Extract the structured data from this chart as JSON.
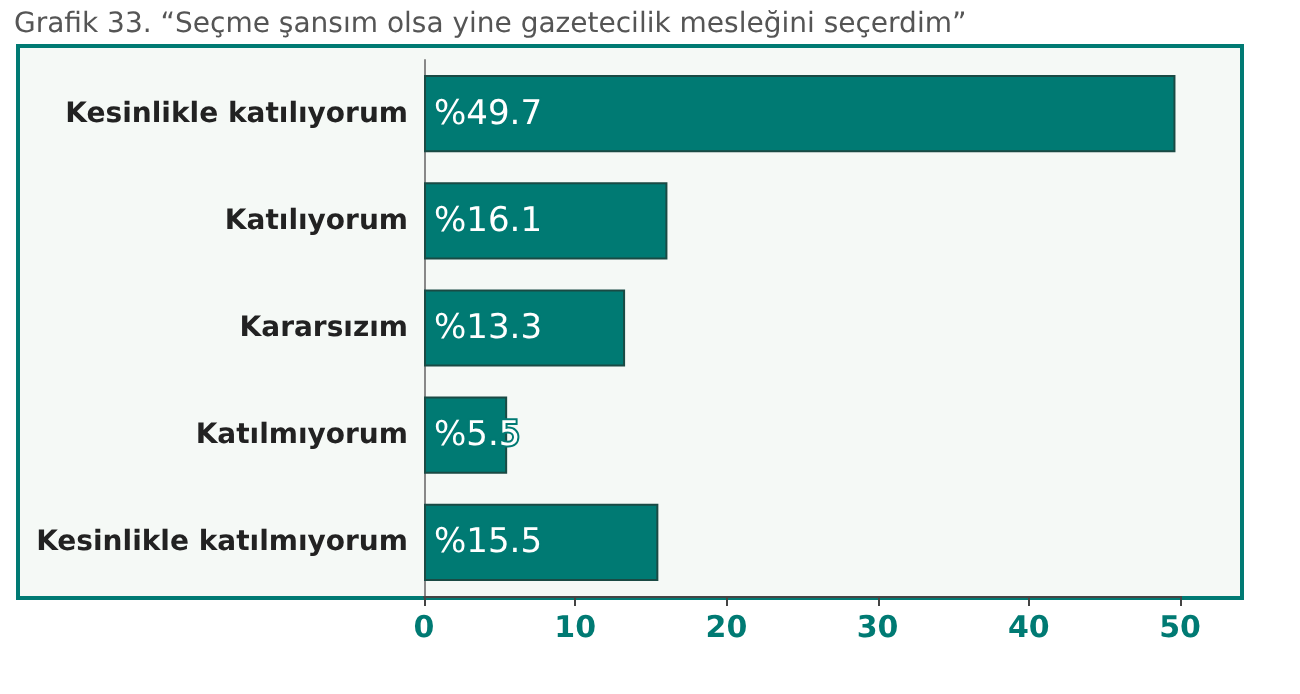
{
  "chart_data": {
    "type": "bar",
    "orientation": "horizontal",
    "title": "Grafik 33. “Seçme şansım olsa yine gazetecilik mesleğini seçerdim”",
    "categories": [
      "Kesinlikle katılıyorum",
      "Katılıyorum",
      "Kararsızım",
      "Katılmıyorum",
      "Kesinlikle katılmıyorum"
    ],
    "values": [
      49.7,
      16.1,
      13.3,
      5.5,
      15.5
    ],
    "value_labels": [
      "%49.7",
      "%16.1",
      "%13.3",
      "%5.5",
      "%15.5"
    ],
    "color": "#007a73",
    "xlim": [
      0,
      50
    ],
    "xticks": [
      0,
      10,
      20,
      30,
      40,
      50
    ],
    "grid": false
  }
}
